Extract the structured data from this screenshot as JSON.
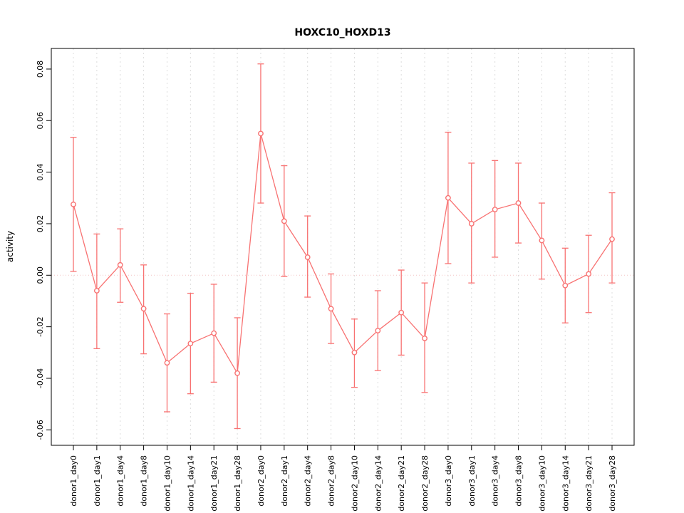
{
  "chart_data": {
    "type": "line",
    "title": "HOXC10_HOXD13",
    "xlabel": "",
    "ylabel": "activity",
    "legend": "none",
    "grid": "vertical-dashed",
    "categories": [
      "donor1_day0",
      "donor1_day1",
      "donor1_day4",
      "donor1_day8",
      "donor1_day10",
      "donor1_day14",
      "donor1_day21",
      "donor1_day28",
      "donor2_day0",
      "donor2_day1",
      "donor2_day4",
      "donor2_day8",
      "donor2_day10",
      "donor2_day14",
      "donor2_day21",
      "donor2_day28",
      "donor3_day0",
      "donor3_day1",
      "donor3_day4",
      "donor3_day8",
      "donor3_day10",
      "donor3_day14",
      "donor3_day21",
      "donor3_day28"
    ],
    "values": [
      0.0275,
      -0.006,
      0.004,
      -0.013,
      -0.034,
      -0.0265,
      -0.0225,
      -0.038,
      0.055,
      0.021,
      0.007,
      -0.013,
      -0.03,
      -0.0215,
      -0.0145,
      -0.0245,
      0.03,
      0.02,
      0.0255,
      0.028,
      0.0135,
      -0.004,
      0.0005,
      0.014
    ],
    "err_upper": [
      0.0535,
      0.016,
      0.018,
      0.004,
      -0.015,
      -0.007,
      -0.0035,
      -0.0165,
      0.082,
      0.0425,
      0.023,
      0.0005,
      -0.017,
      -0.006,
      0.002,
      -0.003,
      0.0555,
      0.0435,
      0.0445,
      0.0435,
      0.028,
      0.0105,
      0.0155,
      0.032
    ],
    "err_lower": [
      0.0015,
      -0.0285,
      -0.0105,
      -0.0305,
      -0.053,
      -0.046,
      -0.0415,
      -0.0595,
      0.028,
      -0.0005,
      -0.0085,
      -0.0265,
      -0.0435,
      -0.037,
      -0.031,
      -0.0455,
      0.0045,
      -0.003,
      0.007,
      0.0125,
      -0.0015,
      -0.0185,
      -0.0145,
      -0.003
    ],
    "yticks": [
      -0.06,
      -0.04,
      -0.02,
      0.0,
      0.02,
      0.04,
      0.06,
      0.08
    ],
    "ytick_labels": [
      "-0.06",
      "-0.04",
      "-0.02",
      "0.00",
      "0.02",
      "0.04",
      "0.06",
      "0.08"
    ],
    "ylim": [
      -0.066,
      0.088
    ],
    "zero_line": 0.0,
    "colors": {
      "series": "#f87272",
      "grid": "#dcdcdc",
      "zero_line": "#f3c3c3",
      "axis": "#000000",
      "background": "#ffffff"
    }
  }
}
